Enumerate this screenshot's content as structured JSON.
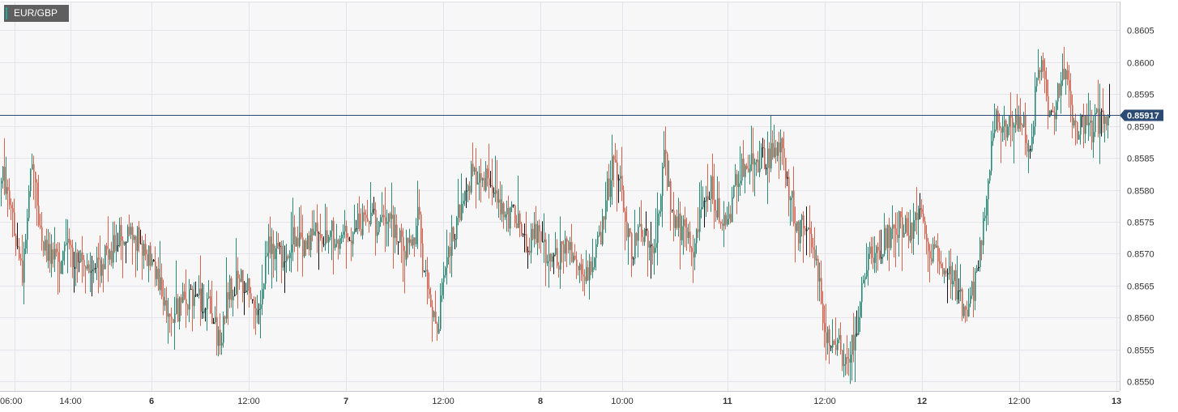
{
  "symbol": "EUR/GBP",
  "colors": {
    "up": "#2a8a76",
    "down": "#d9624f",
    "doji": "#111111",
    "grid": "#e3e3ea",
    "plot_bg": "#f7f7f8",
    "price_line": "#2b4a74",
    "price_tag": "#2b4a74"
  },
  "chart_data": {
    "type": "candlestick",
    "instrument": "EUR/GBP",
    "current_price": "0.85917",
    "ylim": [
      0.85485,
      0.86095
    ],
    "yticks": [
      "0.8550",
      "0.8555",
      "0.8560",
      "0.8565",
      "0.8570",
      "0.8575",
      "0.8580",
      "0.8585",
      "0.8590",
      "0.8595",
      "0.8600",
      "0.8605"
    ],
    "xticks": [
      {
        "label": "06:00",
        "bold": false
      },
      {
        "label": "14:00",
        "bold": false
      },
      {
        "label": "6",
        "bold": true
      },
      {
        "label": "12:00",
        "bold": false
      },
      {
        "label": "7",
        "bold": true
      },
      {
        "label": "12:00",
        "bold": false
      },
      {
        "label": "8",
        "bold": true
      },
      {
        "label": "10:00",
        "bold": false
      },
      {
        "label": "11",
        "bold": true
      },
      {
        "label": "12:00",
        "bold": false
      },
      {
        "label": "12",
        "bold": true
      },
      {
        "label": "12:00",
        "bold": false
      },
      {
        "label": "13",
        "bold": true
      }
    ],
    "path": [
      [
        0,
        0.8581
      ],
      [
        4,
        0.8582
      ],
      [
        12,
        0.8577
      ],
      [
        20,
        0.857
      ],
      [
        28,
        0.8567
      ],
      [
        34,
        0.8578
      ],
      [
        38,
        0.8585
      ],
      [
        42,
        0.858
      ],
      [
        48,
        0.8575
      ],
      [
        54,
        0.8572
      ],
      [
        60,
        0.8569
      ],
      [
        66,
        0.8571
      ],
      [
        72,
        0.8568
      ],
      [
        80,
        0.8572
      ],
      [
        88,
        0.8569
      ],
      [
        96,
        0.857
      ],
      [
        104,
        0.8567
      ],
      [
        112,
        0.8569
      ],
      [
        120,
        0.8567
      ],
      [
        130,
        0.857
      ],
      [
        140,
        0.8571
      ],
      [
        150,
        0.8573
      ],
      [
        160,
        0.8572
      ],
      [
        170,
        0.8573
      ],
      [
        178,
        0.8571
      ],
      [
        186,
        0.8569
      ],
      [
        194,
        0.8567
      ],
      [
        200,
        0.8564
      ],
      [
        206,
        0.8562
      ],
      [
        214,
        0.8561
      ],
      [
        222,
        0.8562
      ],
      [
        232,
        0.8563
      ],
      [
        242,
        0.8564
      ],
      [
        252,
        0.8562
      ],
      [
        260,
        0.8561
      ],
      [
        266,
        0.8558
      ],
      [
        272,
        0.8556
      ],
      [
        280,
        0.8564
      ],
      [
        288,
        0.8565
      ],
      [
        296,
        0.8566
      ],
      [
        304,
        0.8565
      ],
      [
        312,
        0.8561
      ],
      [
        318,
        0.8562
      ],
      [
        326,
        0.8568
      ],
      [
        334,
        0.8572
      ],
      [
        342,
        0.857
      ],
      [
        350,
        0.8568
      ],
      [
        358,
        0.8573
      ],
      [
        368,
        0.8571
      ],
      [
        378,
        0.8572
      ],
      [
        388,
        0.8573
      ],
      [
        398,
        0.8572
      ],
      [
        410,
        0.8573
      ],
      [
        424,
        0.8573
      ],
      [
        438,
        0.8574
      ],
      [
        452,
        0.8575
      ],
      [
        466,
        0.8575
      ],
      [
        480,
        0.8575
      ],
      [
        490,
        0.8573
      ],
      [
        500,
        0.8571
      ],
      [
        508,
        0.857
      ],
      [
        516,
        0.8576
      ],
      [
        522,
        0.8568
      ],
      [
        528,
        0.8564
      ],
      [
        534,
        0.856
      ],
      [
        540,
        0.8558
      ],
      [
        548,
        0.8568
      ],
      [
        556,
        0.8572
      ],
      [
        564,
        0.8576
      ],
      [
        572,
        0.8578
      ],
      [
        580,
        0.8582
      ],
      [
        588,
        0.8581
      ],
      [
        596,
        0.858
      ],
      [
        604,
        0.8583
      ],
      [
        612,
        0.8578
      ],
      [
        620,
        0.8576
      ],
      [
        630,
        0.8576
      ],
      [
        640,
        0.8575
      ],
      [
        650,
        0.8572
      ],
      [
        660,
        0.8573
      ],
      [
        670,
        0.8571
      ],
      [
        682,
        0.8569
      ],
      [
        692,
        0.857
      ],
      [
        704,
        0.8571
      ],
      [
        712,
        0.8567
      ],
      [
        720,
        0.8566
      ],
      [
        730,
        0.8569
      ],
      [
        740,
        0.8572
      ],
      [
        748,
        0.8579
      ],
      [
        756,
        0.8584
      ],
      [
        764,
        0.8582
      ],
      [
        772,
        0.8573
      ],
      [
        780,
        0.8571
      ],
      [
        790,
        0.8573
      ],
      [
        798,
        0.8572
      ],
      [
        806,
        0.8569
      ],
      [
        812,
        0.8577
      ],
      [
        818,
        0.8585
      ],
      [
        824,
        0.8582
      ],
      [
        830,
        0.8576
      ],
      [
        840,
        0.8574
      ],
      [
        850,
        0.8572
      ],
      [
        858,
        0.8571
      ],
      [
        866,
        0.8578
      ],
      [
        874,
        0.8581
      ],
      [
        882,
        0.8578
      ],
      [
        890,
        0.8576
      ],
      [
        898,
        0.8575
      ],
      [
        906,
        0.858
      ],
      [
        914,
        0.8583
      ],
      [
        922,
        0.8583
      ],
      [
        930,
        0.8584
      ],
      [
        940,
        0.8585
      ],
      [
        950,
        0.8585
      ],
      [
        958,
        0.8586
      ],
      [
        966,
        0.8587
      ],
      [
        972,
        0.8581
      ],
      [
        978,
        0.8577
      ],
      [
        984,
        0.8573
      ],
      [
        992,
        0.8576
      ],
      [
        1000,
        0.8574
      ],
      [
        1006,
        0.8569
      ],
      [
        1012,
        0.8563
      ],
      [
        1018,
        0.8558
      ],
      [
        1024,
        0.8555
      ],
      [
        1032,
        0.8556
      ],
      [
        1040,
        0.8554
      ],
      [
        1046,
        0.8553
      ],
      [
        1052,
        0.8556
      ],
      [
        1058,
        0.856
      ],
      [
        1064,
        0.8565
      ],
      [
        1072,
        0.8569
      ],
      [
        1080,
        0.857
      ],
      [
        1090,
        0.8572
      ],
      [
        1100,
        0.8573
      ],
      [
        1110,
        0.8575
      ],
      [
        1120,
        0.8573
      ],
      [
        1130,
        0.8575
      ],
      [
        1138,
        0.8575
      ],
      [
        1146,
        0.8571
      ],
      [
        1154,
        0.857
      ],
      [
        1162,
        0.8568
      ],
      [
        1170,
        0.8567
      ],
      [
        1178,
        0.8565
      ],
      [
        1186,
        0.8563
      ],
      [
        1192,
        0.8559
      ],
      [
        1198,
        0.8563
      ],
      [
        1204,
        0.8566
      ],
      [
        1210,
        0.8572
      ],
      [
        1216,
        0.8577
      ],
      [
        1222,
        0.8585
      ],
      [
        1228,
        0.8593
      ],
      [
        1234,
        0.8591
      ],
      [
        1240,
        0.8589
      ],
      [
        1248,
        0.859
      ],
      [
        1256,
        0.8592
      ],
      [
        1264,
        0.859
      ],
      [
        1270,
        0.8586
      ],
      [
        1276,
        0.8593
      ],
      [
        1282,
        0.86
      ],
      [
        1288,
        0.8601
      ],
      [
        1292,
        0.8593
      ],
      [
        1298,
        0.859
      ],
      [
        1304,
        0.8596
      ],
      [
        1310,
        0.8598
      ],
      [
        1316,
        0.8597
      ],
      [
        1322,
        0.8591
      ],
      [
        1330,
        0.859
      ],
      [
        1338,
        0.859
      ],
      [
        1346,
        0.8589
      ],
      [
        1354,
        0.8591
      ],
      [
        1362,
        0.8591
      ],
      [
        1370,
        0.85917
      ]
    ]
  }
}
